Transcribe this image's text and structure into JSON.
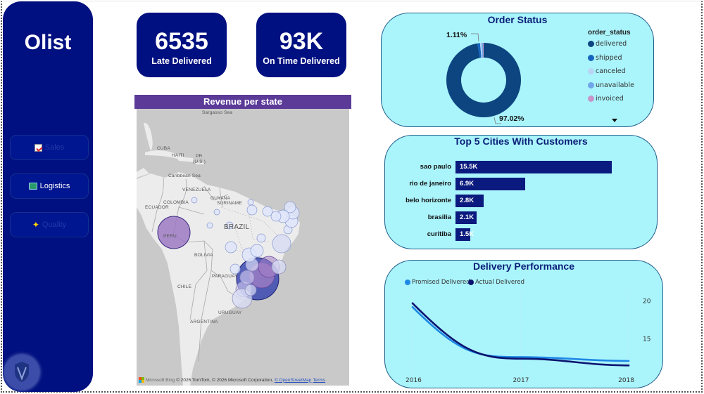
{
  "app": {
    "brand": "Olist"
  },
  "sidebar": {
    "nav": [
      {
        "label": "Sales",
        "icon": "chart-check-icon",
        "active": false
      },
      {
        "label": "Logistics",
        "icon": "book-icon",
        "active": true
      },
      {
        "label": "Quality",
        "icon": "sparkles-icon",
        "active": false
      }
    ],
    "badge_icon": "shield-icon"
  },
  "kpis": [
    {
      "value": "6535",
      "caption": "Late Delivered"
    },
    {
      "value": "93K",
      "caption": "On Time Delivered"
    }
  ],
  "map": {
    "title": "Revenue per state",
    "labels": {
      "sargasso": "Sargasso Sea",
      "cuba": "CUBA",
      "haiti": "HAITI",
      "pr": "PR",
      "us": "(U.S.)",
      "caribbean": "Caribbean Sea",
      "venezuela": "VENEZUELA",
      "guyana": "GUYANA",
      "suriname": "SURINAME",
      "colombia": "COLOMBIA",
      "ecuador": "ECUADOR",
      "peru": "PERU",
      "brazil": "BRAZIL",
      "bolivia": "BOLIVIA",
      "paraguay": "PARAGUAY",
      "chile": "CHILE",
      "uruguay": "URUGUAY",
      "argentina": "ARGENTINA"
    },
    "attribution": {
      "provider": "Microsoft Bing",
      "text": "© 2026 TomTom, © 2026 Microsoft Corporation,",
      "osm_link": "© OpenStreetMap",
      "terms_link": "Terms"
    },
    "colors": {
      "high": "#3b48b0",
      "mid": "#9a73c0",
      "low": "#d8dcf4"
    }
  },
  "order_status": {
    "title": "Order Status",
    "legend_title": "order_status",
    "data_labels": {
      "small": "1.11%",
      "large": "97.02%"
    },
    "chart_data": {
      "type": "pie",
      "categories": [
        "delivered",
        "shipped",
        "canceled",
        "unavailable",
        "invoiced"
      ],
      "values": [
        97.02,
        1.11,
        0.63,
        0.61,
        0.32
      ],
      "colors": [
        "#0d4580",
        "#1565c0",
        "#b9d4f5",
        "#6ea6e8",
        "#c895c9"
      ],
      "data_labels": [
        "97.02%",
        "1.11%"
      ],
      "donut": true,
      "legend_position": "right"
    }
  },
  "top_cities": {
    "title": "Top 5 Cities With Customers",
    "chart_data": {
      "type": "bar",
      "orientation": "horizontal",
      "categories": [
        "sao paulo",
        "rio de janeiro",
        "belo horizonte",
        "brasilia",
        "curitiba"
      ],
      "values": [
        15500,
        6900,
        2800,
        2100,
        1500
      ],
      "data_labels": [
        "15.5K",
        "6.9K",
        "2.8K",
        "2.1K",
        "1.5K"
      ],
      "xlim": [
        0,
        15500
      ],
      "color": "#0b1a7e"
    }
  },
  "delivery": {
    "title": "Delivery Performance",
    "chart_data": {
      "type": "line",
      "x": [
        "2016",
        "2017",
        "2018"
      ],
      "series": [
        {
          "name": "Promised Delivered",
          "values": [
            19.2,
            12.6,
            12.1
          ],
          "color": "#1e88e5"
        },
        {
          "name": "Actual Delivered",
          "values": [
            19.7,
            12.4,
            11.5
          ],
          "color": "#0b1370"
        }
      ],
      "y_ticks": [
        "20",
        "15"
      ],
      "ylim": [
        10.7,
        20.7
      ],
      "y_axis_position": "right",
      "legend_position": "top-left",
      "smooth": true
    }
  }
}
